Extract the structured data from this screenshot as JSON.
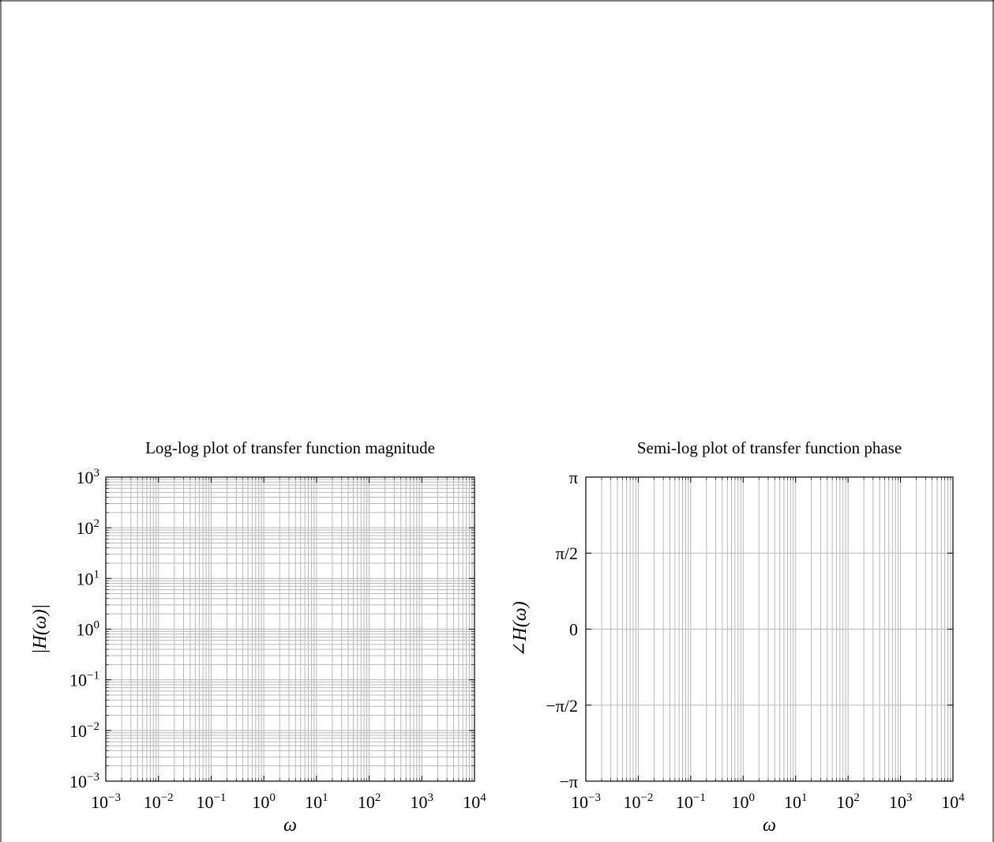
{
  "chart_data": [
    {
      "type": "line",
      "title": "Log-log plot of transfer function magnitude",
      "xlabel": "ω",
      "ylabel": "|H(ω)|",
      "xscale": "log",
      "yscale": "log",
      "xlim": [
        0.001,
        10000
      ],
      "ylim": [
        0.001,
        1000
      ],
      "x_ticks": [
        {
          "base": "10",
          "exp": "−3"
        },
        {
          "base": "10",
          "exp": "−2"
        },
        {
          "base": "10",
          "exp": "−1"
        },
        {
          "base": "10",
          "exp": "0"
        },
        {
          "base": "10",
          "exp": "1"
        },
        {
          "base": "10",
          "exp": "2"
        },
        {
          "base": "10",
          "exp": "3"
        },
        {
          "base": "10",
          "exp": "4"
        }
      ],
      "y_ticks": [
        {
          "base": "10",
          "exp": "−3"
        },
        {
          "base": "10",
          "exp": "−2"
        },
        {
          "base": "10",
          "exp": "−1"
        },
        {
          "base": "10",
          "exp": "0"
        },
        {
          "base": "10",
          "exp": "1"
        },
        {
          "base": "10",
          "exp": "2"
        },
        {
          "base": "10",
          "exp": "3"
        }
      ],
      "grid": "major and minor",
      "series": []
    },
    {
      "type": "line",
      "title": "Semi-log plot of transfer function phase",
      "xlabel": "ω",
      "ylabel": "∠H(ω)",
      "xscale": "log",
      "yscale": "linear",
      "xlim": [
        0.001,
        10000
      ],
      "ylim": [
        -3.14159,
        3.14159
      ],
      "x_ticks": [
        {
          "base": "10",
          "exp": "−3"
        },
        {
          "base": "10",
          "exp": "−2"
        },
        {
          "base": "10",
          "exp": "−1"
        },
        {
          "base": "10",
          "exp": "0"
        },
        {
          "base": "10",
          "exp": "1"
        },
        {
          "base": "10",
          "exp": "2"
        },
        {
          "base": "10",
          "exp": "3"
        },
        {
          "base": "10",
          "exp": "4"
        }
      ],
      "y_tick_values": [
        -3.14159,
        -1.5708,
        0,
        1.5708,
        3.14159
      ],
      "y_tick_labels": [
        "−π",
        "−π/2",
        "0",
        "π/2",
        "π"
      ],
      "grid": "x minor, y major",
      "series": []
    }
  ]
}
